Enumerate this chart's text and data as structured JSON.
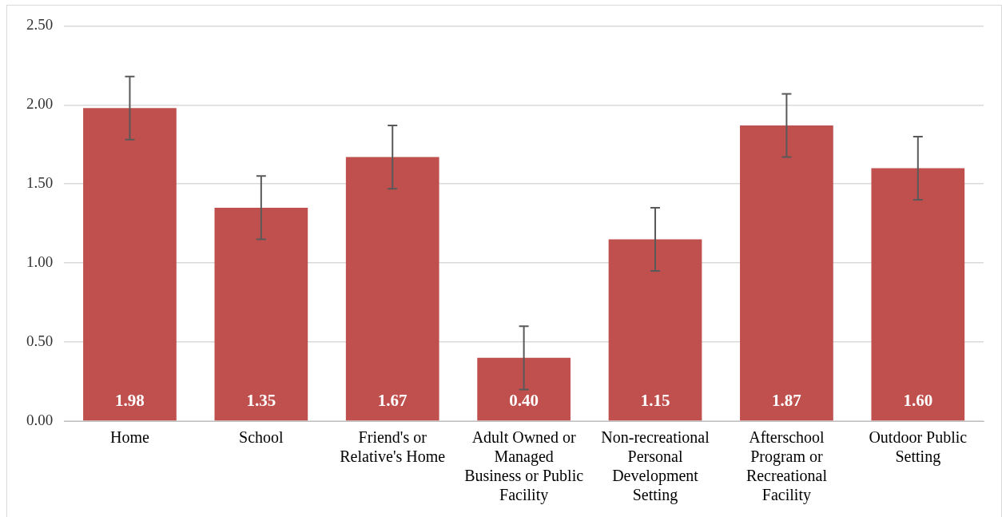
{
  "chart_data": {
    "type": "bar",
    "categories": [
      "Home",
      "School",
      "Friend's or Relative's Home",
      "Adult Owned or Managed Business or Public Facility",
      "Non-recreational Personal Development Setting",
      "Afterschool Program or Recreational Facility",
      "Outdoor Public Setting"
    ],
    "values": [
      1.98,
      1.35,
      1.67,
      0.4,
      1.15,
      1.87,
      1.6
    ],
    "errors": [
      0.2,
      0.2,
      0.2,
      0.2,
      0.2,
      0.2,
      0.2
    ],
    "color": "#c0504d",
    "ylim": [
      0,
      2.5
    ],
    "yticks": [
      {
        "value": 0,
        "label": "0.00"
      },
      {
        "value": 0.5,
        "label": "0.50"
      },
      {
        "value": 1,
        "label": "1.00"
      },
      {
        "value": 1.5,
        "label": "1.50"
      },
      {
        "value": 2,
        "label": "2.00"
      },
      {
        "value": 2.5,
        "label": "2.50"
      }
    ],
    "value_labels": [
      "1.98",
      "1.35",
      "1.67",
      "0.40",
      "1.15",
      "1.87",
      "1.60"
    ],
    "grid": "y",
    "legend": false
  }
}
